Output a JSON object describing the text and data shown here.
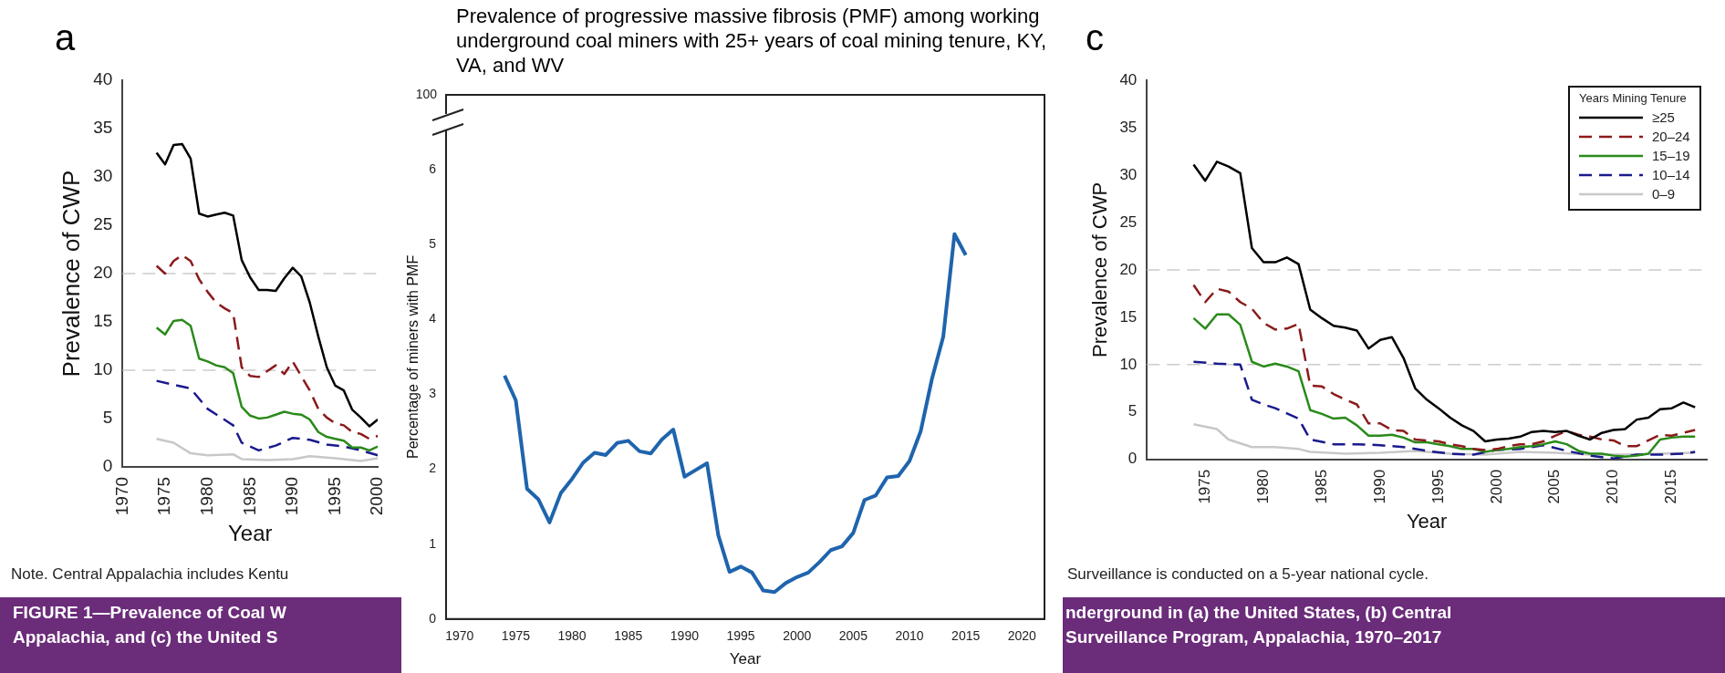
{
  "chart_data": [
    {
      "type": "line",
      "title": "a",
      "xlabel": "Year",
      "ylabel": "Prevalence of CWP",
      "xlim": [
        1970,
        2000
      ],
      "xticks": [
        1970,
        1975,
        1980,
        1985,
        1990,
        1995,
        2000
      ],
      "ylim": [
        0,
        40
      ],
      "yticks": [
        0,
        5,
        10,
        15,
        20,
        25,
        30,
        35,
        40
      ],
      "grid": false,
      "legend": false,
      "ref_lines": [
        {
          "axis": "y",
          "value": 10,
          "color": "#cccccc",
          "line_style": "dashed"
        },
        {
          "axis": "y",
          "value": 20,
          "color": "#cccccc",
          "line_style": "dashed"
        }
      ],
      "series": [
        {
          "color": "#000000",
          "line_style": "solid",
          "x": [
            1974,
            1975,
            1976,
            1977,
            1978,
            1979,
            1980,
            1981,
            1982,
            1983,
            1984,
            1985,
            1986,
            1987,
            1988,
            1989,
            1990,
            1991,
            1992,
            1993,
            1994,
            1995,
            1996,
            1997,
            1998,
            1999,
            2000
          ],
          "values": [
            32.5,
            31.3,
            33.3,
            33.4,
            31.9,
            26.2,
            25.9,
            26.1,
            26.3,
            26.0,
            21.4,
            19.6,
            18.3,
            18.3,
            18.2,
            19.5,
            20.6,
            19.7,
            17.0,
            13.5,
            10.3,
            8.4,
            7.9,
            5.9,
            5.1,
            4.2,
            4.9
          ]
        },
        {
          "color": "#8b1a1a",
          "line_style": "dashed",
          "x": [
            1974,
            1975,
            1976,
            1977,
            1978,
            1979,
            1980,
            1981,
            1982,
            1983,
            1984,
            1985,
            1986,
            1987,
            1988,
            1989,
            1990,
            1991,
            1992,
            1993,
            1994,
            1995,
            1996,
            1997,
            1998,
            1999,
            2000
          ],
          "values": [
            20.8,
            20.0,
            21.3,
            21.9,
            21.3,
            19.4,
            18.1,
            17.0,
            16.4,
            15.9,
            10.3,
            9.4,
            9.3,
            9.9,
            10.5,
            9.6,
            10.9,
            9.4,
            7.9,
            6.0,
            5.1,
            4.5,
            4.3,
            3.6,
            3.4,
            2.9,
            3.2
          ]
        },
        {
          "color": "#2a8a1a",
          "line_style": "solid",
          "x": [
            1974,
            1975,
            1976,
            1977,
            1978,
            1979,
            1980,
            1981,
            1982,
            1983,
            1984,
            1985,
            1986,
            1987,
            1988,
            1989,
            1990,
            1991,
            1992,
            1993,
            1994,
            1995,
            1996,
            1997,
            1998,
            1999,
            2000
          ],
          "values": [
            14.4,
            13.7,
            15.1,
            15.2,
            14.6,
            11.2,
            10.9,
            10.5,
            10.3,
            9.7,
            6.2,
            5.3,
            5.0,
            5.1,
            5.4,
            5.7,
            5.5,
            5.4,
            4.9,
            3.6,
            3.1,
            2.9,
            2.7,
            2.0,
            2.0,
            1.7,
            2.1
          ]
        },
        {
          "color": "#1a1a8c",
          "line_style": "dashed",
          "x": [
            1974,
            1976,
            1978,
            1980,
            1983,
            1984,
            1986,
            1988,
            1990,
            1992,
            1994,
            1996,
            1998,
            2000
          ],
          "values": [
            8.9,
            8.5,
            8.1,
            6.0,
            4.3,
            2.5,
            1.7,
            2.2,
            3.0,
            2.8,
            2.3,
            2.1,
            1.7,
            1.2
          ]
        },
        {
          "color": "#c8c8c8",
          "line_style": "solid",
          "x": [
            1974,
            1976,
            1978,
            1980,
            1983,
            1984,
            1987,
            1990,
            1992,
            1995,
            1998,
            2000
          ],
          "values": [
            2.9,
            2.5,
            1.4,
            1.2,
            1.3,
            0.8,
            0.7,
            0.8,
            1.1,
            0.9,
            0.6,
            0.9
          ]
        }
      ]
    },
    {
      "type": "line",
      "title": "Prevalence of progressive massive fibrosis (PMF) among working underground coal miners with 25+ years of coal mining tenure, KY, VA, and WV",
      "xlabel": "Year",
      "ylabel": "Percentage of miners with PMF",
      "xlim": [
        1968.8,
        2022
      ],
      "xticks": [
        1970,
        1975,
        1980,
        1985,
        1990,
        1995,
        2000,
        2005,
        2010,
        2015,
        2020
      ],
      "ylim": [
        0,
        7
      ],
      "yticks": [
        0,
        1,
        2,
        3,
        4,
        5,
        6
      ],
      "annotations": [
        "100"
      ],
      "grid": false,
      "legend": false,
      "series": [
        {
          "color": "#1f64ad",
          "line_style": "solid",
          "x": [
            1974,
            1975,
            1976,
            1977,
            1978,
            1979,
            1980,
            1981,
            1982,
            1983,
            1984,
            1985,
            1986,
            1987,
            1988,
            1989,
            1990,
            1991,
            1992,
            1993,
            1994,
            1995,
            1996,
            1997,
            1998,
            1999,
            2000,
            2001,
            2002,
            2003,
            2004,
            2005,
            2006,
            2007,
            2008,
            2009,
            2010,
            2011,
            2012,
            2013,
            2014,
            2015
          ],
          "values": [
            3.25,
            2.92,
            1.74,
            1.6,
            1.29,
            1.68,
            1.87,
            2.09,
            2.22,
            2.19,
            2.35,
            2.38,
            2.24,
            2.21,
            2.4,
            2.53,
            1.9,
            1.99,
            2.08,
            1.12,
            0.63,
            0.7,
            0.62,
            0.38,
            0.36,
            0.48,
            0.56,
            0.62,
            0.76,
            0.92,
            0.97,
            1.15,
            1.59,
            1.65,
            1.89,
            1.91,
            2.11,
            2.51,
            3.21,
            3.77,
            5.14,
            4.86
          ]
        }
      ]
    },
    {
      "type": "line",
      "title": "c",
      "xlabel": "Year",
      "ylabel": "Prevalence of CWP",
      "legend_title": "Years Mining Tenure",
      "xlim": [
        1970,
        2018
      ],
      "xticks": [
        1975,
        1980,
        1985,
        1990,
        1995,
        2000,
        2005,
        2010,
        2015
      ],
      "ylim": [
        0,
        40
      ],
      "yticks": [
        0,
        5,
        10,
        15,
        20,
        25,
        30,
        35,
        40
      ],
      "grid": false,
      "legend": "top right",
      "ref_lines": [
        {
          "axis": "y",
          "value": 10,
          "color": "#cccccc",
          "line_style": "dashed"
        },
        {
          "axis": "y",
          "value": 20,
          "color": "#cccccc",
          "line_style": "dashed"
        }
      ],
      "series": [
        {
          "name": "≥25",
          "color": "#000000",
          "line_style": "solid",
          "x": [
            1974,
            1975,
            1976,
            1977,
            1978,
            1979,
            1980,
            1981,
            1982,
            1983,
            1984,
            1985,
            1986,
            1987,
            1988,
            1989,
            1990,
            1991,
            1992,
            1993,
            1994,
            1995,
            1996,
            1997,
            1998,
            1999,
            2000,
            2001,
            2002,
            2003,
            2004,
            2005,
            2006,
            2007,
            2008,
            2009,
            2010,
            2011,
            2012,
            2013,
            2014,
            2015,
            2016,
            2017
          ],
          "values": [
            31.1,
            29.4,
            31.4,
            30.9,
            30.2,
            22.3,
            20.8,
            20.8,
            21.3,
            20.6,
            15.8,
            14.9,
            14.1,
            13.9,
            13.6,
            11.7,
            12.6,
            12.9,
            10.7,
            7.5,
            6.3,
            5.4,
            4.4,
            3.6,
            3.0,
            1.9,
            2.1,
            2.2,
            2.4,
            2.9,
            3.0,
            2.9,
            3.0,
            2.5,
            2.1,
            2.8,
            3.1,
            3.2,
            4.2,
            4.4,
            5.3,
            5.4,
            6.0,
            5.5
          ]
        },
        {
          "name": "20–24",
          "color": "#8b1a1a",
          "line_style": "dashed",
          "x": [
            1974,
            1975,
            1976,
            1977,
            1978,
            1979,
            1980,
            1981,
            1982,
            1983,
            1984,
            1985,
            1986,
            1987,
            1988,
            1989,
            1990,
            1991,
            1992,
            1993,
            1994,
            1995,
            1996,
            1997,
            1998,
            1999,
            2000,
            2001,
            2002,
            2003,
            2004,
            2005,
            2006,
            2007,
            2008,
            2009,
            2010,
            2011,
            2012,
            2014,
            2015,
            2016,
            2017
          ],
          "values": [
            18.4,
            16.6,
            18.0,
            17.7,
            16.6,
            15.9,
            14.4,
            13.7,
            13.8,
            14.3,
            7.8,
            7.7,
            6.9,
            6.3,
            5.8,
            3.8,
            3.8,
            3.1,
            3.0,
            2.1,
            2.0,
            1.9,
            1.6,
            1.4,
            1.1,
            1.0,
            1.1,
            1.4,
            1.6,
            1.6,
            1.9,
            2.5,
            3.0,
            2.6,
            2.4,
            2.1,
            2.0,
            1.4,
            1.4,
            2.6,
            2.5,
            2.8,
            3.1
          ]
        },
        {
          "name": "15–19",
          "color": "#2a8a1a",
          "line_style": "solid",
          "x": [
            1974,
            1975,
            1976,
            1977,
            1978,
            1979,
            1980,
            1981,
            1982,
            1983,
            1984,
            1985,
            1986,
            1987,
            1988,
            1989,
            1990,
            1991,
            1992,
            1993,
            1994,
            1995,
            1996,
            1997,
            1998,
            1999,
            2000,
            2001,
            2002,
            2003,
            2004,
            2005,
            2006,
            2007,
            2008,
            2009,
            2010,
            2011,
            2012,
            2013,
            2014,
            2015,
            2016,
            2017
          ],
          "values": [
            14.9,
            13.8,
            15.3,
            15.3,
            14.2,
            10.3,
            9.8,
            10.1,
            9.8,
            9.3,
            5.2,
            4.8,
            4.3,
            4.4,
            3.6,
            2.5,
            2.5,
            2.6,
            2.3,
            1.8,
            1.8,
            1.6,
            1.4,
            1.1,
            1.1,
            0.8,
            1.0,
            1.1,
            1.3,
            1.4,
            1.6,
            1.9,
            1.6,
            0.9,
            0.6,
            0.6,
            0.4,
            0.3,
            0.4,
            0.6,
            2.1,
            2.3,
            2.4,
            2.4
          ]
        },
        {
          "name": "10–14",
          "color": "#1a1a8c",
          "line_style": "dashed",
          "x": [
            1974,
            1976,
            1978,
            1979,
            1980,
            1981,
            1983,
            1984,
            1986,
            1988,
            1990,
            1992,
            1994,
            1996,
            1998,
            2000,
            2002,
            2004,
            2006,
            2008,
            2010,
            2012,
            2014,
            2016,
            2017
          ],
          "values": [
            10.3,
            10.1,
            10.0,
            6.3,
            5.8,
            5.4,
            4.3,
            2.1,
            1.6,
            1.6,
            1.5,
            1.3,
            0.9,
            0.6,
            0.5,
            1.0,
            1.1,
            1.5,
            0.9,
            0.4,
            0.1,
            0.5,
            0.5,
            0.6,
            0.8
          ]
        },
        {
          "name": "0–9",
          "color": "#c8c8c8",
          "line_style": "solid",
          "x": [
            1974,
            1976,
            1977,
            1979,
            1981,
            1983,
            1984,
            1987,
            1990,
            1993,
            1996,
            1999,
            2002,
            2005,
            2008,
            2011,
            2014,
            2017
          ],
          "values": [
            3.7,
            3.2,
            2.1,
            1.3,
            1.3,
            1.1,
            0.8,
            0.6,
            0.7,
            0.9,
            0.6,
            0.5,
            0.8,
            0.7,
            0.5,
            0.5,
            0.6,
            0.7
          ]
        }
      ]
    },
    {
      "type": "other",
      "annotations": [
        "Note. Central Appalachia includes Kentu",
        "Surveillance is conducted on a 5-year national cycle.",
        "FIGURE 1—Prevalence of Coal W",
        "Appalachia, and (c) the United S",
        "nderground in (a) the United States, (b) Central",
        "Surveillance Program, Appalachia, 1970–2017"
      ]
    }
  ]
}
